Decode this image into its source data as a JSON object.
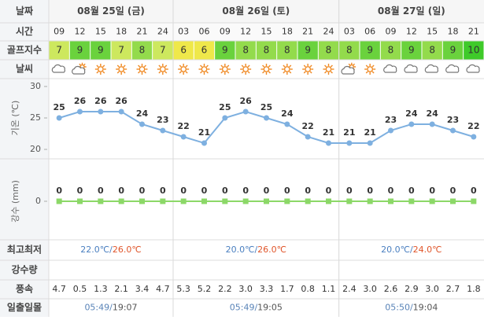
{
  "row_labels": {
    "date": "날짜",
    "time": "시간",
    "golf": "골프지수",
    "weather": "날씨",
    "minmax": "최고최저",
    "rain": "강수량",
    "wind": "풍속",
    "sun": "일출일몰"
  },
  "golf_colors": {
    "6": "#efe84a",
    "7": "#cde85e",
    "8": "#93db4c",
    "9": "#6ad23d",
    "10": "#3fca2a"
  },
  "days": [
    {
      "date": "08월 25일 (금)",
      "times": [
        "09",
        "12",
        "15",
        "18",
        "21",
        "24"
      ],
      "golf": [
        7,
        9,
        9,
        7,
        8,
        7
      ],
      "wind": [
        "4.7",
        "0.5",
        "1.3",
        "2.1",
        "3.4",
        "4.7"
      ],
      "minmax": {
        "min": "22.0℃/",
        "max": "26.0℃"
      },
      "sun": {
        "rise": "05:49/",
        "set": "19:07"
      }
    },
    {
      "date": "08월 26일 (토)",
      "times": [
        "03",
        "06",
        "09",
        "12",
        "15",
        "18",
        "21",
        "24"
      ],
      "golf": [
        6,
        6,
        9,
        8,
        8,
        8,
        9,
        8
      ],
      "wind": [
        "5.3",
        "5.2",
        "2.2",
        "3.0",
        "3.3",
        "1.7",
        "0.8",
        "1.1"
      ],
      "minmax": {
        "min": "20.0℃/",
        "max": "26.0℃"
      },
      "sun": {
        "rise": "05:49/",
        "set": "19:05"
      }
    },
    {
      "date": "08월 27일 (일)",
      "times": [
        "03",
        "06",
        "09",
        "12",
        "15",
        "18",
        "21"
      ],
      "golf": [
        8,
        9,
        8,
        9,
        8,
        9,
        10
      ],
      "wind": [
        "2.4",
        "3.0",
        "2.6",
        "2.9",
        "3.0",
        "2.7",
        "1.8"
      ],
      "minmax": {
        "min": "20.0℃/",
        "max": "24.0℃"
      },
      "sun": {
        "rise": "05:50/",
        "set": "19:04"
      }
    }
  ],
  "chart_data": [
    {
      "type": "line",
      "ylabel": "기온 (℃)",
      "values": [
        25,
        26,
        26,
        26,
        24,
        23,
        22,
        21,
        25,
        26,
        25,
        24,
        22,
        21,
        21,
        21,
        23,
        24,
        24,
        23,
        22
      ],
      "color": "#7eb0e0",
      "ylim": [
        20,
        30
      ],
      "yticks": [
        20,
        25,
        30
      ]
    },
    {
      "type": "line",
      "ylabel": "강수 (mm)",
      "values": [
        0,
        0,
        0,
        0,
        0,
        0,
        0,
        0,
        0,
        0,
        0,
        0,
        0,
        0,
        0,
        0,
        0,
        0,
        0,
        0,
        0
      ],
      "color": "#8cd868",
      "ylim": [
        -1,
        1
      ],
      "yticks": [
        0
      ]
    }
  ]
}
